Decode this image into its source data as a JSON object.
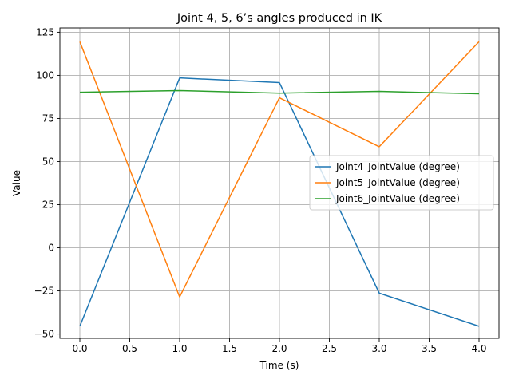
{
  "chart_data": {
    "type": "line",
    "title": "Joint 4, 5, 6’s angles produced in IK",
    "xlabel": "Time (s)",
    "ylabel": "Value",
    "xlim": [
      -0.2,
      4.2
    ],
    "ylim": [
      -52.5,
      127.5
    ],
    "xticks": [
      0.0,
      0.5,
      1.0,
      1.5,
      2.0,
      2.5,
      3.0,
      3.5,
      4.0
    ],
    "xtick_labels": [
      "0.0",
      "0.5",
      "1.0",
      "1.5",
      "2.0",
      "2.5",
      "3.0",
      "3.5",
      "4.0"
    ],
    "yticks": [
      -50,
      -25,
      0,
      25,
      50,
      75,
      100,
      125
    ],
    "ytick_labels": [
      "−50",
      "−25",
      "0",
      "25",
      "50",
      "75",
      "100",
      "125"
    ],
    "grid": true,
    "legend_position": "center-right",
    "x": [
      0,
      1,
      2,
      3,
      4
    ],
    "series": [
      {
        "name": "Joint4_JointValue (degree)",
        "color": "#1f77b4",
        "values": [
          -45.5,
          98.5,
          95.8,
          -26.3,
          -45.5
        ]
      },
      {
        "name": "Joint5_JointValue (degree)",
        "color": "#ff7f0e",
        "values": [
          119.5,
          -28.5,
          87.0,
          58.6,
          119.5
        ]
      },
      {
        "name": "Joint6_JointValue (degree)",
        "color": "#2ca02c",
        "values": [
          90.2,
          91.2,
          89.7,
          90.7,
          89.3
        ]
      }
    ]
  }
}
